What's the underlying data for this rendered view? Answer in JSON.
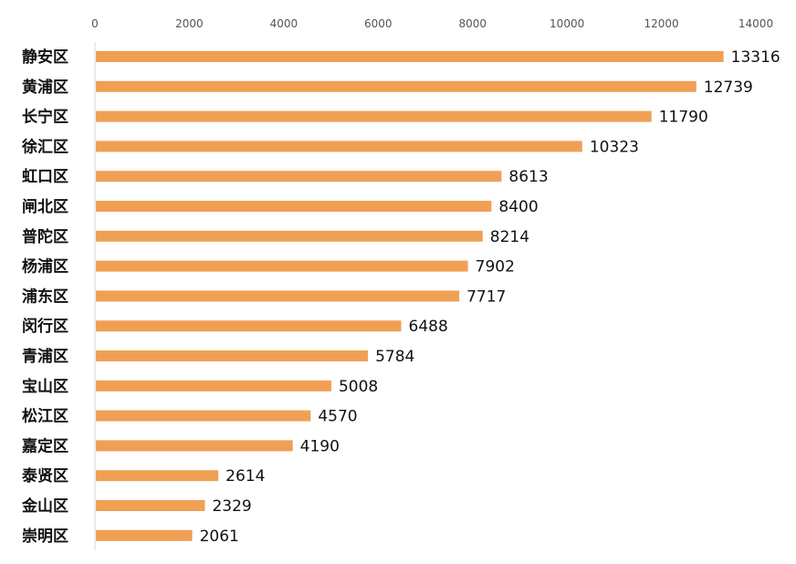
{
  "chart_data": {
    "type": "bar",
    "orientation": "horizontal",
    "title": "",
    "xlabel": "",
    "ylabel": "",
    "xlim": [
      0,
      14000
    ],
    "ticks": [
      0,
      2000,
      4000,
      6000,
      8000,
      10000,
      12000,
      14000
    ],
    "tick_labels": [
      "0",
      "2000",
      "4000",
      "6000",
      "8000",
      "10000",
      "12000",
      "14000"
    ],
    "grid": false,
    "axis_position": "top",
    "bar_color": "#f0a055",
    "categories": [
      "静安区",
      "黄浦区",
      "长宁区",
      "徐汇区",
      "虹口区",
      "闸北区",
      "普陀区",
      "杨浦区",
      "浦东区",
      "闵行区",
      "青浦区",
      "宝山区",
      "松江区",
      "嘉定区",
      "泰贤区",
      "金山区",
      "崇明区"
    ],
    "values": [
      13316,
      12739,
      11790,
      10323,
      8613,
      8400,
      8214,
      7902,
      7717,
      6488,
      5784,
      5008,
      4570,
      4190,
      2614,
      2329,
      2061
    ],
    "value_labels": [
      "13316",
      "12739",
      "11790",
      "10323",
      "8613",
      "8400",
      "8214",
      "7902",
      "7717",
      "6488",
      "5784",
      "5008",
      "4570",
      "4190",
      "2614",
      "2329",
      "2061"
    ]
  }
}
